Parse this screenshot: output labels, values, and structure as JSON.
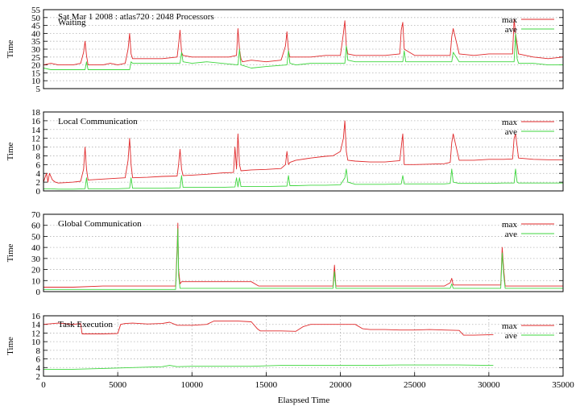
{
  "figure": {
    "run_title": "Sat Mar 1 2008 : atlas720 : 2048 Processors",
    "xlabel": "Elaspsed Time"
  },
  "chart_data": [
    {
      "type": "line",
      "title": "Waiting",
      "xlabel": "",
      "ylabel": "Time",
      "xlim": [
        0,
        35000
      ],
      "ylim": [
        5,
        55
      ],
      "yticks": [
        5,
        10,
        15,
        20,
        25,
        30,
        35,
        40,
        45,
        50,
        55
      ],
      "grid": true,
      "legend_position": "top-right",
      "series": [
        {
          "name": "max",
          "color": "#e0282a",
          "x": [
            0,
            500,
            1000,
            1500,
            2000,
            2500,
            2700,
            2800,
            2900,
            3000,
            3500,
            4000,
            4500,
            5000,
            5500,
            5700,
            5800,
            5900,
            6000,
            7000,
            8000,
            9000,
            9100,
            9200,
            9300,
            9400,
            10000,
            11000,
            12000,
            12500,
            13000,
            13100,
            13200,
            13300,
            13400,
            14000,
            15000,
            16000,
            16300,
            16400,
            16500,
            16600,
            17000,
            18000,
            19000,
            20000,
            20200,
            20300,
            20400,
            20500,
            21000,
            22000,
            23000,
            24000,
            24100,
            24200,
            24300,
            25000,
            26000,
            27000,
            27400,
            27500,
            27600,
            28000,
            29000,
            30000,
            31000,
            31600,
            31700,
            31800,
            32000,
            33000,
            34000,
            35000
          ],
          "values": [
            20,
            21,
            20,
            20,
            20,
            21,
            28,
            35,
            26,
            20,
            20,
            20,
            21,
            20,
            21,
            30,
            40,
            27,
            24,
            24,
            24,
            25,
            33,
            42,
            28,
            26,
            25,
            25,
            25,
            25,
            26,
            43,
            30,
            24,
            22,
            23,
            22,
            23,
            32,
            41,
            29,
            25,
            25,
            25,
            26,
            26,
            40,
            48,
            32,
            27,
            26,
            26,
            26,
            27,
            42,
            47,
            30,
            26,
            26,
            26,
            26,
            38,
            43,
            27,
            26,
            27,
            27,
            27,
            49,
            40,
            27,
            25,
            24,
            25
          ]
        },
        {
          "name": "ave",
          "color": "#3fd63f",
          "x": [
            0,
            500,
            1000,
            2000,
            2800,
            2900,
            3000,
            4000,
            5000,
            5800,
            5900,
            6000,
            7000,
            8000,
            9200,
            9300,
            9400,
            10000,
            11000,
            12000,
            13100,
            13200,
            13300,
            14000,
            15000,
            16400,
            16500,
            16600,
            17000,
            18000,
            19000,
            20300,
            20400,
            20500,
            21000,
            22000,
            23000,
            24200,
            24300,
            24400,
            25000,
            26000,
            27000,
            27500,
            27600,
            28000,
            29000,
            30000,
            31000,
            31700,
            31800,
            31900,
            32000,
            33000,
            34000,
            35000
          ],
          "values": [
            18,
            17,
            17,
            17,
            17,
            22,
            17,
            17,
            17,
            17,
            22,
            21,
            21,
            21,
            21,
            28,
            22,
            21,
            22,
            21,
            20,
            30,
            20,
            18,
            19,
            20,
            29,
            21,
            20,
            21,
            21,
            21,
            32,
            23,
            22,
            22,
            22,
            22,
            29,
            22,
            22,
            22,
            22,
            22,
            28,
            22,
            22,
            22,
            22,
            22,
            40,
            24,
            21,
            21,
            20,
            20
          ]
        }
      ]
    },
    {
      "type": "line",
      "title": "Local Communication",
      "xlabel": "",
      "ylabel": "Time",
      "xlim": [
        0,
        35000
      ],
      "ylim": [
        0,
        18
      ],
      "yticks": [
        0,
        2,
        4,
        6,
        8,
        10,
        12,
        14,
        16,
        18
      ],
      "grid": true,
      "legend_position": "top-right",
      "series": [
        {
          "name": "max",
          "color": "#e0282a",
          "x": [
            0,
            200,
            300,
            400,
            600,
            800,
            1000,
            1500,
            2000,
            2500,
            2700,
            2800,
            2900,
            3000,
            4000,
            5000,
            5500,
            5700,
            5800,
            5900,
            6000,
            7000,
            8000,
            9000,
            9100,
            9200,
            9300,
            9400,
            10000,
            11000,
            12000,
            12800,
            12900,
            13000,
            13100,
            13200,
            13300,
            14000,
            15000,
            16000,
            16300,
            16400,
            16500,
            16600,
            17000,
            18000,
            19000,
            19500,
            20000,
            20200,
            20300,
            20400,
            20500,
            21000,
            22000,
            23000,
            24000,
            24100,
            24200,
            24300,
            25000,
            26000,
            27000,
            27400,
            27500,
            27600,
            28000,
            29000,
            30000,
            31000,
            31600,
            31700,
            31800,
            32000,
            33000,
            34000,
            35000
          ],
          "values": [
            2,
            4,
            2,
            4,
            2.5,
            2,
            1.8,
            1.9,
            2,
            2.2,
            5,
            10,
            5,
            2.5,
            2.7,
            2.9,
            3,
            7,
            12,
            6,
            3,
            3.1,
            3.3,
            3.4,
            6,
            9.5,
            5,
            3.5,
            3.6,
            3.8,
            4.1,
            4.2,
            10,
            5,
            13,
            6,
            4.6,
            4.8,
            4.9,
            5.1,
            6,
            9,
            6,
            6.5,
            7,
            7.5,
            7.9,
            8,
            9,
            12,
            16,
            9,
            7,
            6.8,
            6.6,
            6.6,
            6.9,
            10,
            13,
            6,
            6,
            6.1,
            6.2,
            6.5,
            11,
            13,
            7,
            7,
            7.2,
            7.2,
            7.3,
            12,
            13,
            7.5,
            7.2,
            7.1,
            7.1
          ]
        },
        {
          "name": "ave",
          "color": "#3fd63f",
          "x": [
            0,
            500,
            1000,
            2000,
            2800,
            2900,
            3000,
            4000,
            5000,
            5800,
            5900,
            6000,
            7000,
            8000,
            9200,
            9300,
            9400,
            10000,
            11000,
            12000,
            12900,
            13000,
            13100,
            13200,
            13300,
            14000,
            15000,
            16400,
            16500,
            16600,
            17000,
            18000,
            19000,
            20000,
            20300,
            20400,
            20500,
            21000,
            22000,
            23000,
            24100,
            24200,
            24300,
            25000,
            26000,
            27000,
            27400,
            27500,
            27600,
            28000,
            29000,
            30000,
            31000,
            31700,
            31800,
            31900,
            32000,
            33000,
            34000,
            35000
          ],
          "values": [
            0.5,
            0.5,
            0.4,
            0.4,
            0.5,
            3,
            0.5,
            0.5,
            0.5,
            0.6,
            3,
            0.6,
            0.6,
            0.6,
            0.7,
            3.5,
            0.8,
            0.8,
            0.8,
            0.8,
            0.9,
            3,
            0.9,
            3,
            1,
            1,
            1,
            1.1,
            3.5,
            1.2,
            1.2,
            1.3,
            1.3,
            1.4,
            3,
            5,
            2,
            1.5,
            1.5,
            1.5,
            1.6,
            3.5,
            1.6,
            1.6,
            1.6,
            1.6,
            1.7,
            5,
            2,
            1.7,
            1.7,
            1.7,
            1.8,
            1.8,
            5,
            2,
            1.8,
            1.8,
            1.8,
            1.8
          ]
        }
      ]
    },
    {
      "type": "line",
      "title": "Global Communication",
      "xlabel": "",
      "ylabel": "Time",
      "xlim": [
        0,
        35000
      ],
      "ylim": [
        0,
        70
      ],
      "yticks": [
        0,
        10,
        20,
        30,
        40,
        50,
        60,
        70
      ],
      "grid": true,
      "legend_position": "top-right",
      "series": [
        {
          "name": "max",
          "color": "#e0282a",
          "x": [
            0,
            2000,
            4000,
            6000,
            8000,
            8900,
            9000,
            9050,
            9100,
            9200,
            9300,
            9500,
            10000,
            12000,
            14000,
            14500,
            15000,
            17000,
            19500,
            19600,
            19700,
            20000,
            22000,
            25000,
            27000,
            27400,
            27500,
            27600,
            29000,
            30800,
            30900,
            31000,
            31100,
            32000,
            35000
          ],
          "values": [
            4,
            4,
            5,
            5,
            5,
            5,
            40,
            62,
            20,
            7,
            9,
            9,
            9,
            9,
            9,
            5,
            5,
            5,
            5,
            24,
            5,
            5,
            5,
            5,
            5,
            8,
            12,
            6,
            6,
            6,
            40,
            20,
            5,
            5,
            5
          ]
        },
        {
          "name": "ave",
          "color": "#3fd63f",
          "x": [
            0,
            2000,
            4000,
            6000,
            8000,
            8900,
            9000,
            9050,
            9100,
            9200,
            10000,
            12000,
            14000,
            16000,
            19500,
            19600,
            19700,
            22000,
            25000,
            27400,
            27500,
            27600,
            30800,
            30900,
            31000,
            31100,
            33000,
            35000
          ],
          "values": [
            2,
            2,
            2,
            2,
            2,
            2,
            35,
            57,
            15,
            3,
            3,
            3,
            3,
            3,
            3,
            18,
            3,
            3,
            3,
            3,
            7,
            3,
            3,
            35,
            15,
            3,
            3,
            3
          ]
        }
      ]
    },
    {
      "type": "line",
      "title": "Task Execution",
      "xlabel": "Elaspsed Time",
      "ylabel": "Time",
      "xlim": [
        0,
        35000
      ],
      "ylim": [
        2,
        16
      ],
      "yticks": [
        2,
        4,
        6,
        8,
        10,
        12,
        14,
        16
      ],
      "xticks": [
        0,
        5000,
        10000,
        15000,
        20000,
        25000,
        30000,
        35000
      ],
      "grid": true,
      "legend_position": "top-right",
      "series": [
        {
          "name": "max",
          "color": "#e0282a",
          "x": [
            0,
            1000,
            2000,
            2500,
            2600,
            3000,
            4000,
            5000,
            5200,
            5500,
            6000,
            7000,
            8000,
            8500,
            9000,
            10000,
            11000,
            11500,
            12000,
            13000,
            14000,
            14400,
            14600,
            15000,
            16000,
            17000,
            17500,
            18000,
            19000,
            20000,
            21000,
            21500,
            22000,
            23000,
            24000,
            25000,
            26000,
            27000,
            28000,
            28300,
            29000,
            30000,
            30300
          ],
          "values": [
            14,
            14.3,
            14,
            14.2,
            11.8,
            11.8,
            11.8,
            11.9,
            14,
            14.2,
            14.3,
            14.1,
            14.2,
            14.5,
            13.8,
            13.8,
            14,
            14.8,
            14.8,
            14.8,
            14.6,
            13,
            12.5,
            12.5,
            12.5,
            12.4,
            13.5,
            14,
            14,
            14,
            14,
            13,
            12.8,
            12.8,
            12.7,
            12.7,
            12.8,
            12.7,
            12.6,
            11.5,
            11.5,
            11.6,
            11.6
          ]
        },
        {
          "name": "ave",
          "color": "#3fd63f",
          "x": [
            0,
            2000,
            4000,
            6000,
            8000,
            8500,
            9000,
            10000,
            12000,
            14000,
            16000,
            18000,
            20000,
            22000,
            24000,
            26000,
            28000,
            30000,
            30300
          ],
          "values": [
            3.6,
            3.6,
            3.8,
            4,
            4.2,
            4.5,
            4.2,
            4.3,
            4.3,
            4.3,
            4.5,
            4.5,
            4.5,
            4.5,
            4.6,
            4.6,
            4.6,
            4.5,
            4.5
          ]
        }
      ]
    }
  ]
}
